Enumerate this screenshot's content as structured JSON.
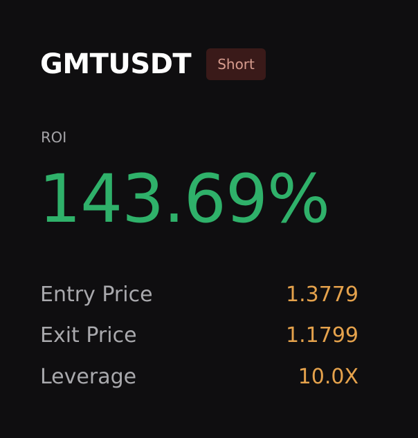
{
  "position": {
    "symbol": "GMTUSDT",
    "side": "Short"
  },
  "roi": {
    "label": "ROI",
    "value": "143.69%"
  },
  "details": {
    "entry": {
      "label": "Entry Price",
      "value": "1.3779"
    },
    "exit": {
      "label": "Exit Price",
      "value": "1.1799"
    },
    "leverage": {
      "label": "Leverage",
      "value": "10.0X"
    }
  },
  "colors": {
    "background": "#0f0e10",
    "roi_positive": "#2fb16a",
    "detail_value": "#e5a24c",
    "short_badge_bg": "#3a1a19",
    "short_badge_text": "#d79c8e"
  }
}
